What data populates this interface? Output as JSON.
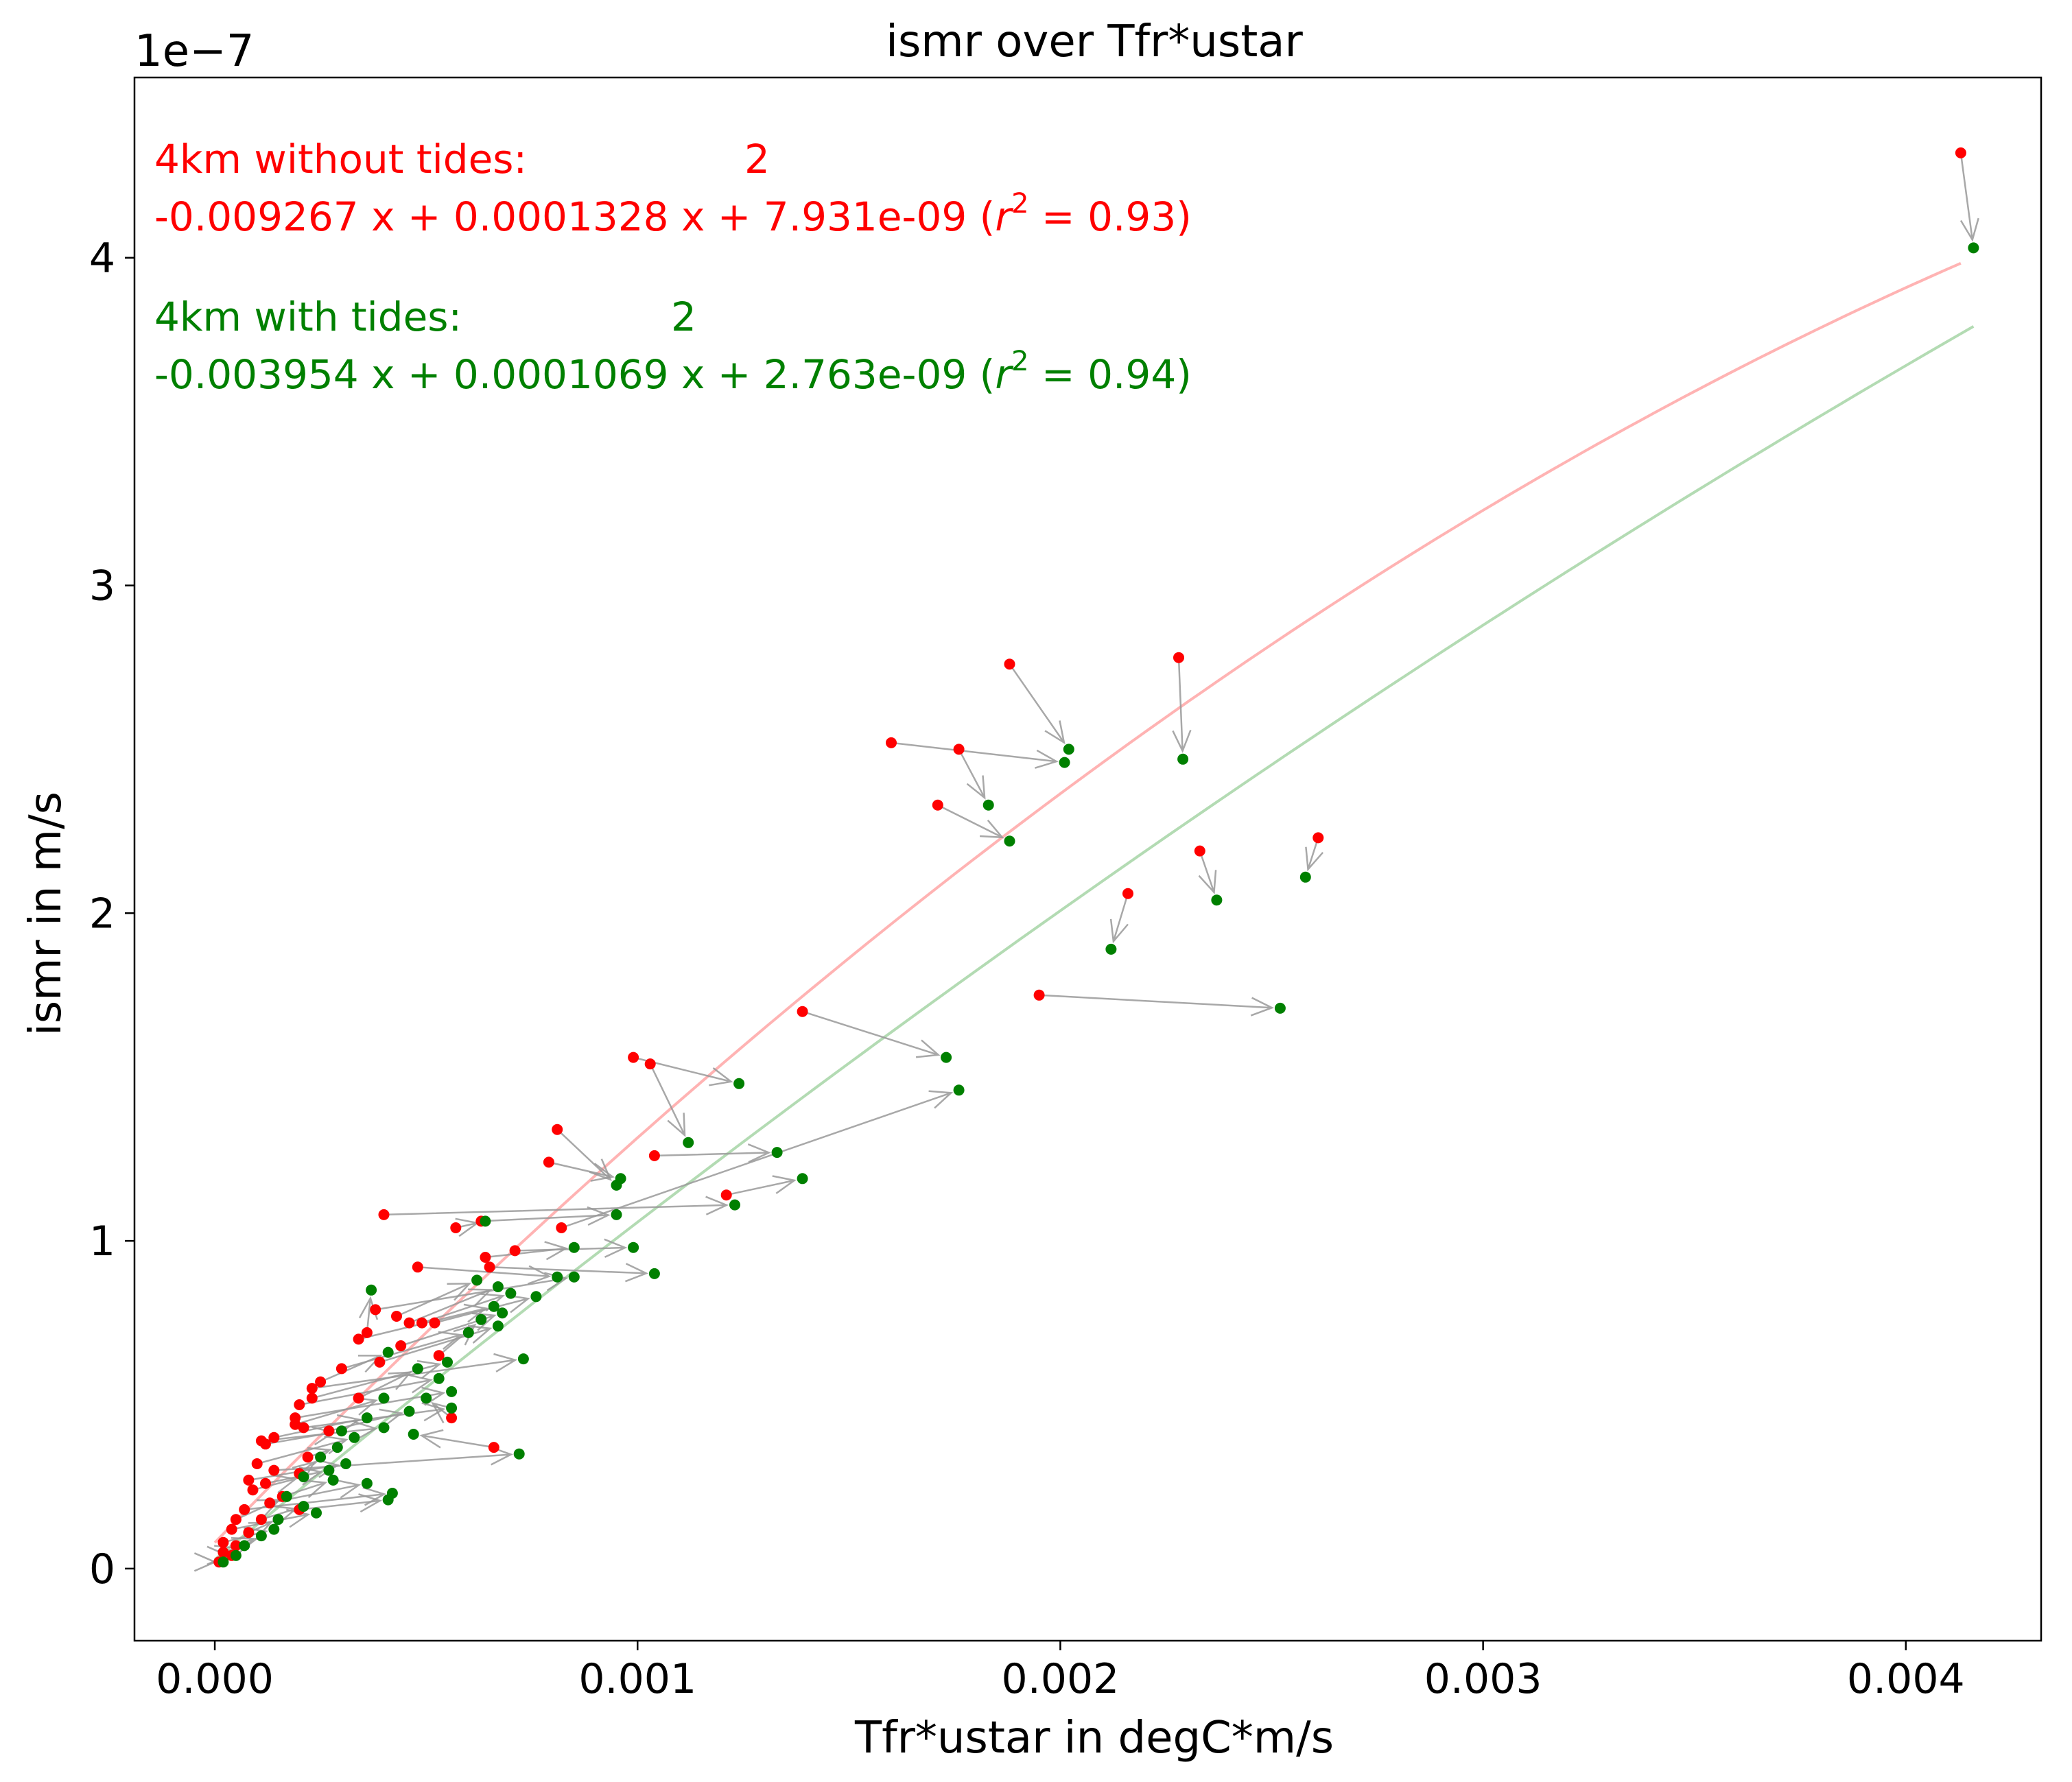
{
  "chart_data": {
    "type": "scatter",
    "title": "ismr over Tfr*ustar",
    "xlabel": "Tfr*ustar in degC*m/s",
    "ylabel": "ismr in m/s",
    "y_offset_label": "1e−7",
    "xlim": [
      -0.00019,
      0.00432
    ],
    "ylim": [
      -0.22,
      4.55
    ],
    "x_ticks": [
      0.0,
      0.001,
      0.002,
      0.003,
      0.004
    ],
    "x_tick_labels": [
      "0.000",
      "0.001",
      "0.002",
      "0.003",
      "0.004"
    ],
    "y_ticks": [
      0,
      1,
      2,
      3,
      4
    ],
    "y_tick_labels": [
      "0",
      "1",
      "2",
      "3",
      "4"
    ],
    "grid": false,
    "colors": {
      "no_tides": "#ff0000",
      "tides": "#008000",
      "fit_no_tides": "#ffb3b3",
      "fit_tides": "#b3dbb3",
      "arrow": "#999999"
    },
    "series": [
      {
        "name": "4km without tides",
        "fit_label": "4km without tides:",
        "fit_exponent": "2",
        "fit_equation": "-0.009267 x + 0.0001328 x + 7.931e-09 (",
        "r2_text": "r",
        "r2_exp": "2",
        "r2_value": " = 0.93)",
        "fit_coefficients": [
          -0.009267,
          0.0001328,
          7.931e-09
        ],
        "fit_x_range": [
          0.0,
          0.00413
        ],
        "points": [
          [
            0.00413,
            4.32
          ],
          [
            0.00228,
            2.78
          ],
          [
            0.00188,
            2.76
          ],
          [
            0.0016,
            2.52
          ],
          [
            0.00176,
            2.5
          ],
          [
            0.00171,
            2.33
          ],
          [
            0.00261,
            2.23
          ],
          [
            0.00233,
            2.19
          ],
          [
            0.00216,
            2.06
          ],
          [
            0.00195,
            1.75
          ],
          [
            0.00139,
            1.7
          ],
          [
            0.00099,
            1.56
          ],
          [
            0.00103,
            1.54
          ],
          [
            0.00081,
            1.34
          ],
          [
            0.00079,
            1.24
          ],
          [
            0.00104,
            1.26
          ],
          [
            0.00121,
            1.14
          ],
          [
            0.00082,
            1.04
          ],
          [
            0.0004,
            1.08
          ],
          [
            0.00063,
            1.06
          ],
          [
            0.00057,
            1.04
          ],
          [
            0.00071,
            0.97
          ],
          [
            0.00064,
            0.95
          ],
          [
            0.00065,
            0.92
          ],
          [
            0.00048,
            0.92
          ],
          [
            0.00038,
            0.79
          ],
          [
            0.00043,
            0.77
          ],
          [
            0.00046,
            0.75
          ],
          [
            0.00049,
            0.75
          ],
          [
            0.00052,
            0.75
          ],
          [
            0.00036,
            0.72
          ],
          [
            0.00034,
            0.7
          ],
          [
            0.00044,
            0.68
          ],
          [
            0.00053,
            0.65
          ],
          [
            0.00039,
            0.63
          ],
          [
            0.0003,
            0.61
          ],
          [
            0.00025,
            0.57
          ],
          [
            0.00023,
            0.55
          ],
          [
            0.00023,
            0.52
          ],
          [
            0.00034,
            0.52
          ],
          [
            0.0002,
            0.5
          ],
          [
            0.00019,
            0.46
          ],
          [
            0.00056,
            0.46
          ],
          [
            0.00019,
            0.44
          ],
          [
            0.00021,
            0.43
          ],
          [
            0.00027,
            0.42
          ],
          [
            0.00014,
            0.4
          ],
          [
            0.00011,
            0.39
          ],
          [
            0.00012,
            0.38
          ],
          [
            0.00066,
            0.37
          ],
          [
            0.0001,
            0.32
          ],
          [
            0.00022,
            0.34
          ],
          [
            0.00014,
            0.3
          ],
          [
            0.0002,
            0.29
          ],
          [
            8e-05,
            0.27
          ],
          [
            0.00012,
            0.26
          ],
          [
            9e-05,
            0.24
          ],
          [
            0.00016,
            0.22
          ],
          [
            0.00013,
            0.2
          ],
          [
            7e-05,
            0.18
          ],
          [
            0.0002,
            0.18
          ],
          [
            5e-05,
            0.15
          ],
          [
            0.00011,
            0.15
          ],
          [
            4e-05,
            0.12
          ],
          [
            8e-05,
            0.11
          ],
          [
            2e-05,
            0.08
          ],
          [
            5e-05,
            0.07
          ],
          [
            2e-05,
            0.05
          ],
          [
            4e-05,
            0.04
          ],
          [
            1e-05,
            0.02
          ]
        ]
      },
      {
        "name": "4km with tides",
        "fit_label": "4km with tides:",
        "fit_exponent": "2",
        "fit_equation": "-0.003954 x + 0.0001069 x + 2.763e-09 (",
        "r2_text": "r",
        "r2_exp": "2",
        "r2_value": " = 0.94)",
        "fit_coefficients": [
          -0.003954,
          0.0001069,
          2.763e-09
        ],
        "fit_x_range": [
          0.0,
          0.00416
        ],
        "points": [
          [
            0.00416,
            4.03
          ],
          [
            0.00229,
            2.47
          ],
          [
            0.00202,
            2.5
          ],
          [
            0.00201,
            2.46
          ],
          [
            0.00183,
            2.33
          ],
          [
            0.00188,
            2.22
          ],
          [
            0.00258,
            2.11
          ],
          [
            0.00237,
            2.04
          ],
          [
            0.00212,
            1.89
          ],
          [
            0.00252,
            1.71
          ],
          [
            0.00173,
            1.56
          ],
          [
            0.00124,
            1.48
          ],
          [
            0.00112,
            1.3
          ],
          [
            0.00095,
            1.17
          ],
          [
            0.00096,
            1.19
          ],
          [
            0.00133,
            1.27
          ],
          [
            0.00139,
            1.19
          ],
          [
            0.00176,
            1.46
          ],
          [
            0.00123,
            1.11
          ],
          [
            0.00095,
            1.08
          ],
          [
            0.00064,
            1.06
          ],
          [
            0.00099,
            0.98
          ],
          [
            0.00085,
            0.98
          ],
          [
            0.00104,
            0.9
          ],
          [
            0.00081,
            0.89
          ],
          [
            0.00085,
            0.89
          ],
          [
            0.00062,
            0.88
          ],
          [
            0.00067,
            0.86
          ],
          [
            0.0007,
            0.84
          ],
          [
            0.00076,
            0.83
          ],
          [
            0.00037,
            0.85
          ],
          [
            0.00066,
            0.8
          ],
          [
            0.00068,
            0.78
          ],
          [
            0.00063,
            0.76
          ],
          [
            0.00067,
            0.74
          ],
          [
            0.0006,
            0.72
          ],
          [
            0.00041,
            0.66
          ],
          [
            0.00073,
            0.64
          ],
          [
            0.00055,
            0.63
          ],
          [
            0.00048,
            0.61
          ],
          [
            0.00053,
            0.58
          ],
          [
            0.00056,
            0.54
          ],
          [
            0.0005,
            0.52
          ],
          [
            0.0004,
            0.52
          ],
          [
            0.00056,
            0.49
          ],
          [
            0.00046,
            0.48
          ],
          [
            0.00036,
            0.46
          ],
          [
            0.0004,
            0.43
          ],
          [
            0.0003,
            0.42
          ],
          [
            0.00047,
            0.41
          ],
          [
            0.00033,
            0.4
          ],
          [
            0.00029,
            0.37
          ],
          [
            0.00072,
            0.35
          ],
          [
            0.00025,
            0.34
          ],
          [
            0.00031,
            0.32
          ],
          [
            0.00027,
            0.3
          ],
          [
            0.00021,
            0.28
          ],
          [
            0.00028,
            0.27
          ],
          [
            0.00036,
            0.26
          ],
          [
            0.00042,
            0.23
          ],
          [
            0.00041,
            0.21
          ],
          [
            0.00017,
            0.22
          ],
          [
            0.00021,
            0.19
          ],
          [
            0.00024,
            0.17
          ],
          [
            0.00015,
            0.15
          ],
          [
            0.00014,
            0.12
          ],
          [
            0.00011,
            0.1
          ],
          [
            7e-05,
            0.07
          ],
          [
            5e-05,
            0.04
          ],
          [
            2e-05,
            0.02
          ]
        ]
      }
    ]
  }
}
